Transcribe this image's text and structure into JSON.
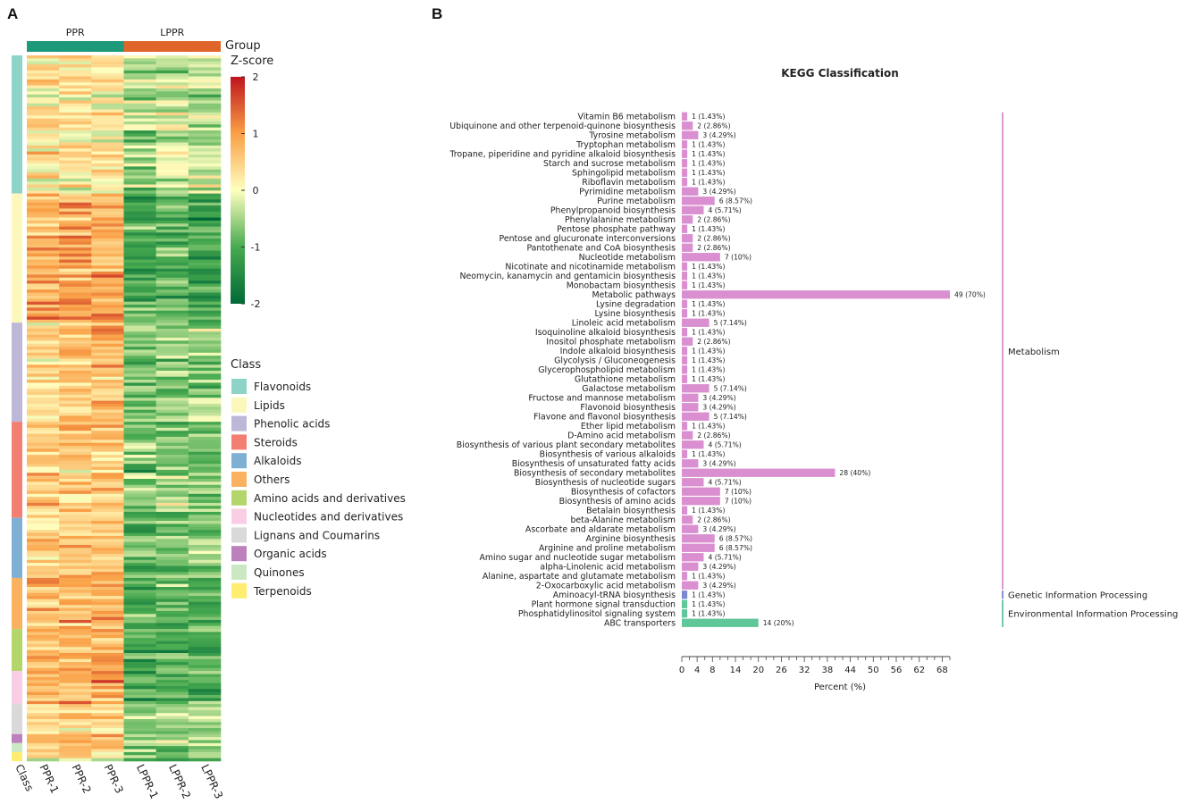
{
  "panel_a": {
    "letter": "A",
    "group_label": "Group",
    "zscore_label": "Z-score",
    "groups": [
      {
        "name": "PPR",
        "color": "#1d9a7a"
      },
      {
        "name": "LPPR",
        "color": "#e0652a"
      }
    ],
    "samples": [
      "PPR-1",
      "PPR-2",
      "PPR-3",
      "LPPR-1",
      "LPPR-2",
      "LPPR-3"
    ],
    "class_axis_label": "Class",
    "colorbar_ticks": [
      "2",
      "1",
      "0",
      "-1",
      "-2"
    ],
    "colorbar_range": [
      -2,
      2
    ],
    "legend_title": "Class",
    "classes": [
      {
        "name": "Flavonoids",
        "color": "#8ed3c7",
        "rows": 46
      },
      {
        "name": "Lipids",
        "color": "#fcf8bc",
        "rows": 43
      },
      {
        "name": "Phenolic acids",
        "color": "#bdb7d8",
        "rows": 33
      },
      {
        "name": "Steroids",
        "color": "#f27f72",
        "rows": 32
      },
      {
        "name": "Alkaloids",
        "color": "#7eb0d4",
        "rows": 20
      },
      {
        "name": "Others",
        "color": "#fbb260",
        "rows": 17
      },
      {
        "name": "Amino acids and derivatives",
        "color": "#b3d66a",
        "rows": 14
      },
      {
        "name": "Nucleotides and derivatives",
        "color": "#f9cde3",
        "rows": 11
      },
      {
        "name": "Lignans and Coumarins",
        "color": "#d9d9d9",
        "rows": 10
      },
      {
        "name": "Organic acids",
        "color": "#bc80bd",
        "rows": 3
      },
      {
        "name": "Quinones",
        "color": "#cbe8c4",
        "rows": 3
      },
      {
        "name": "Terpenoids",
        "color": "#ffed6f",
        "rows": 3
      }
    ]
  },
  "chart_data": {
    "type": "bar",
    "orientation": "horizontal",
    "panel_letter": "B",
    "title": "KEGG Classification",
    "xlabel": "Percent (%)",
    "xlim": [
      0,
      70
    ],
    "xticks": [
      0,
      4,
      8,
      14,
      20,
      26,
      32,
      38,
      44,
      50,
      56,
      62,
      68
    ],
    "categories": [
      "Vitamin B6 metabolism",
      "Ubiquinone and other terpenoid-quinone biosynthesis",
      "Tyrosine metabolism",
      "Tryptophan metabolism",
      "Tropane, piperidine and pyridine alkaloid biosynthesis",
      "Starch and sucrose metabolism",
      "Sphingolipid metabolism",
      "Riboflavin metabolism",
      "Pyrimidine metabolism",
      "Purine metabolism",
      "Phenylpropanoid biosynthesis",
      "Phenylalanine metabolism",
      "Pentose phosphate pathway",
      "Pentose and glucuronate interconversions",
      "Pantothenate and CoA biosynthesis",
      "Nucleotide metabolism",
      "Nicotinate and nicotinamide metabolism",
      "Neomycin, kanamycin and gentamicin biosynthesis",
      "Monobactam biosynthesis",
      "Metabolic pathways",
      "Lysine degradation",
      "Lysine biosynthesis",
      "Linoleic acid metabolism",
      "Isoquinoline alkaloid biosynthesis",
      "Inositol phosphate metabolism",
      "Indole alkaloid biosynthesis",
      "Glycolysis / Gluconeogenesis",
      "Glycerophospholipid metabolism",
      "Glutathione metabolism",
      "Galactose metabolism",
      "Fructose and mannose metabolism",
      "Flavonoid biosynthesis",
      "Flavone and flavonol biosynthesis",
      "Ether lipid metabolism",
      "D-Amino acid metabolism",
      "Biosynthesis of various plant secondary metabolites",
      "Biosynthesis of various alkaloids",
      "Biosynthesis of unsaturated fatty acids",
      "Biosynthesis of secondary metabolites",
      "Biosynthesis of nucleotide sugars",
      "Biosynthesis of cofactors",
      "Biosynthesis of amino acids",
      "Betalain biosynthesis",
      "beta-Alanine metabolism",
      "Ascorbate and aldarate metabolism",
      "Arginine biosynthesis",
      "Arginine and proline metabolism",
      "Amino sugar and nucleotide sugar metabolism",
      "alpha-Linolenic acid metabolism",
      "Alanine, aspartate and glutamate metabolism",
      "2-Oxocarboxylic acid metabolism",
      "Aminoacyl-tRNA biosynthesis",
      "Plant hormone signal transduction",
      "Phosphatidylinositol signaling system",
      "ABC transporters"
    ],
    "counts": [
      1,
      2,
      3,
      1,
      1,
      1,
      1,
      1,
      3,
      6,
      4,
      2,
      1,
      2,
      2,
      7,
      1,
      1,
      1,
      49,
      1,
      1,
      5,
      1,
      2,
      1,
      1,
      1,
      1,
      5,
      3,
      3,
      5,
      1,
      2,
      4,
      1,
      3,
      28,
      4,
      7,
      7,
      1,
      2,
      3,
      6,
      6,
      4,
      3,
      1,
      3,
      1,
      1,
      1,
      14
    ],
    "values": [
      1.43,
      2.86,
      4.29,
      1.43,
      1.43,
      1.43,
      1.43,
      1.43,
      4.29,
      8.57,
      5.71,
      2.86,
      1.43,
      2.86,
      2.86,
      10,
      1.43,
      1.43,
      1.43,
      70,
      1.43,
      1.43,
      7.14,
      1.43,
      2.86,
      1.43,
      1.43,
      1.43,
      1.43,
      7.14,
      4.29,
      4.29,
      7.14,
      1.43,
      2.86,
      5.71,
      1.43,
      4.29,
      40,
      5.71,
      10,
      10,
      1.43,
      2.86,
      4.29,
      8.57,
      8.57,
      5.71,
      4.29,
      1.43,
      4.29,
      1.43,
      1.43,
      1.43,
      20
    ],
    "data_labels": [
      "1 (1.43%)",
      "2 (2.86%)",
      "3 (4.29%)",
      "1 (1.43%)",
      "1 (1.43%)",
      "1 (1.43%)",
      "1 (1.43%)",
      "1 (1.43%)",
      "3 (4.29%)",
      "6 (8.57%)",
      "4 (5.71%)",
      "2 (2.86%)",
      "1 (1.43%)",
      "2 (2.86%)",
      "2 (2.86%)",
      "7 (10%)",
      "1 (1.43%)",
      "1 (1.43%)",
      "1 (1.43%)",
      "49 (70%)",
      "1 (1.43%)",
      "1 (1.43%)",
      "5 (7.14%)",
      "1 (1.43%)",
      "2 (2.86%)",
      "1 (1.43%)",
      "1 (1.43%)",
      "1 (1.43%)",
      "1 (1.43%)",
      "5 (7.14%)",
      "3 (4.29%)",
      "3 (4.29%)",
      "5 (7.14%)",
      "1 (1.43%)",
      "2 (2.86%)",
      "4 (5.71%)",
      "1 (1.43%)",
      "3 (4.29%)",
      "28 (40%)",
      "4 (5.71%)",
      "7 (10%)",
      "7 (10%)",
      "1 (1.43%)",
      "2 (2.86%)",
      "3 (4.29%)",
      "6 (8.57%)",
      "6 (8.57%)",
      "4 (5.71%)",
      "3 (4.29%)",
      "1 (1.43%)",
      "3 (4.29%)",
      "1 (1.43%)",
      "1 (1.43%)",
      "1 (1.43%)",
      "14 (20%)"
    ],
    "groups": [
      {
        "name": "Metabolism",
        "color": "#d98fd0",
        "start": 0,
        "end": 50
      },
      {
        "name": "Genetic Information Processing",
        "color": "#7b88cf",
        "start": 51,
        "end": 51
      },
      {
        "name": "Environmental Information Processing",
        "color": "#5fc79a",
        "start": 52,
        "end": 54
      }
    ]
  }
}
